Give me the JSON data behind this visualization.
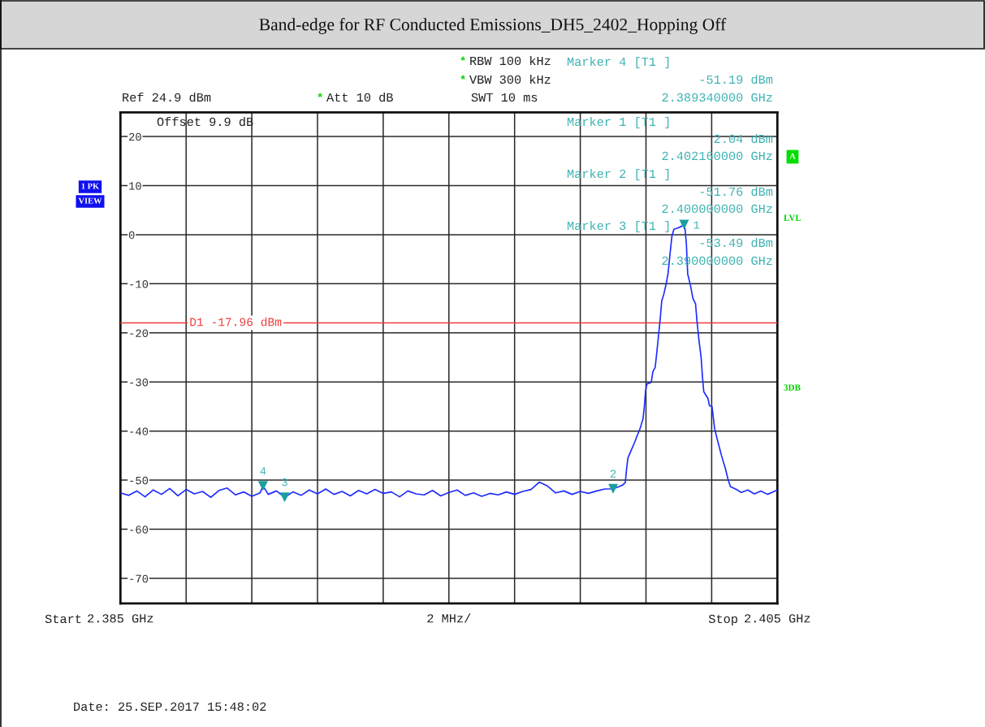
{
  "chart_data": {
    "type": "line",
    "title": "Band-edge for RF Conducted Emissions_DH5_2402_Hopping Off",
    "series": [
      {
        "color": "#1e2cff",
        "x": [
          2.385,
          2.38525,
          2.3855,
          2.38575,
          2.386,
          2.38625,
          2.3865,
          2.38675,
          2.387,
          2.38725,
          2.3875,
          2.38775,
          2.388,
          2.38825,
          2.3885,
          2.38875,
          2.389,
          2.38925,
          2.38934,
          2.3895,
          2.38975,
          2.39,
          2.39025,
          2.3905,
          2.39075,
          2.391,
          2.39125,
          2.3915,
          2.39175,
          2.392,
          2.39225,
          2.3925,
          2.39275,
          2.393,
          2.39325,
          2.3935,
          2.39375,
          2.394,
          2.39425,
          2.3945,
          2.39475,
          2.395,
          2.39525,
          2.3955,
          2.39575,
          2.396,
          2.39625,
          2.3965,
          2.39675,
          2.397,
          2.39725,
          2.3975,
          2.39775,
          2.398,
          2.39825,
          2.3985,
          2.39875,
          2.399,
          2.39925,
          2.3995,
          2.39975,
          2.4,
          2.40015,
          2.40029,
          2.40037,
          2.40041,
          2.40045,
          2.40054,
          2.40066,
          2.40074,
          2.40082,
          2.40091,
          2.40095,
          2.40099,
          2.40103,
          2.40116,
          2.40121,
          2.40128,
          2.40132,
          2.40138,
          2.40143,
          2.40148,
          2.40154,
          2.40161,
          2.40167,
          2.40173,
          2.40179,
          2.40185,
          2.40198,
          2.40208,
          2.40216,
          2.40219,
          2.40223,
          2.40227,
          2.40235,
          2.40243,
          2.40251,
          2.40255,
          2.40261,
          2.40268,
          2.40272,
          2.40276,
          2.40289,
          2.40293,
          2.40301,
          2.40309,
          2.40319,
          2.4033,
          2.40342,
          2.4035,
          2.40357,
          2.40375,
          2.4039,
          2.4041,
          2.4043,
          2.4045,
          2.4047,
          2.4049,
          2.405
        ],
        "values": [
          -52.6,
          -53.1,
          -52.2,
          -53.4,
          -52.0,
          -52.9,
          -51.7,
          -53.2,
          -51.9,
          -52.8,
          -52.3,
          -53.5,
          -52.1,
          -51.6,
          -53.0,
          -52.4,
          -53.3,
          -52.6,
          -51.19,
          -52.9,
          -52.2,
          -53.49,
          -52.4,
          -53.1,
          -52.0,
          -52.8,
          -51.8,
          -52.9,
          -52.3,
          -53.2,
          -52.1,
          -52.8,
          -51.9,
          -52.7,
          -52.4,
          -53.4,
          -52.2,
          -52.8,
          -53.0,
          -52.1,
          -53.2,
          -52.5,
          -52.0,
          -53.1,
          -52.6,
          -53.3,
          -52.7,
          -53.0,
          -52.4,
          -52.9,
          -52.3,
          -51.9,
          -50.4,
          -51.2,
          -52.6,
          -52.2,
          -52.9,
          -52.3,
          -52.7,
          -52.2,
          -51.8,
          -51.76,
          -51.4,
          -51.0,
          -50.5,
          -47.7,
          -45.5,
          -44.1,
          -42.2,
          -40.8,
          -39.5,
          -37.5,
          -35.0,
          -31.7,
          -30.4,
          -30.1,
          -27.9,
          -27.0,
          -24.6,
          -20.7,
          -17.4,
          -13.5,
          -12.2,
          -10.2,
          -8.0,
          -4.1,
          -0.3,
          1.1,
          1.4,
          1.7,
          2.04,
          1.1,
          -1.9,
          -8.0,
          -10.2,
          -13.0,
          -14.1,
          -17.4,
          -21.3,
          -25.1,
          -29.0,
          -32.0,
          -33.4,
          -34.8,
          -35.0,
          -39.5,
          -42.2,
          -45.0,
          -47.7,
          -49.9,
          -51.3,
          -51.9,
          -52.5,
          -52.0,
          -52.8,
          -52.2,
          -52.9,
          -52.3,
          -52.0
        ]
      },
      {
        "type": "scatter",
        "color": "#1a9e9e",
        "marker": "triangle",
        "x": [
          2.40216,
          2.4,
          2.39,
          2.38934
        ],
        "values": [
          2.04,
          -51.76,
          -53.49,
          -51.19
        ]
      }
    ],
    "xlim": [
      2.385,
      2.405
    ],
    "xticks": [
      {
        "value": 2.385,
        "label": "2.385 GHz"
      },
      {
        "value": 2.387,
        "label": null
      },
      {
        "value": 2.389,
        "label": null
      },
      {
        "value": 2.391,
        "label": null
      },
      {
        "value": 2.393,
        "label": null
      },
      {
        "value": 2.395,
        "label": "2 MHz/"
      },
      {
        "value": 2.397,
        "label": null
      },
      {
        "value": 2.399,
        "label": null
      },
      {
        "value": 2.401,
        "label": null
      },
      {
        "value": 2.403,
        "label": null
      },
      {
        "value": 2.405,
        "label": "2.405 GHz"
      }
    ],
    "ylim": [
      -75.1,
      24.9
    ],
    "yticks": [
      -70,
      -60,
      -50,
      -40,
      -30,
      -20,
      -10,
      0,
      10,
      20
    ],
    "grid": true,
    "ref_lines": [
      {
        "axis": "y",
        "value": -17.96,
        "label": "D1 -17.96 dBm",
        "color": "#f03c3c"
      }
    ],
    "annotations": [
      "*",
      "RBW 100 kHz",
      "*",
      "VBW 300 kHz",
      "Ref 24.9 dBm",
      "*",
      "Att 10 dB",
      "SWT 10 ms",
      "Marker 4 [T1 ]",
      "-51.19 dBm",
      "2.389340000 GHz",
      "Offset 9.9 dB",
      "Marker 1 [T1 ]",
      "2.04 dBm",
      "2.402160000 GHz",
      "Marker 2 [T1 ]",
      "-51.76 dBm",
      "2.400000000 GHz",
      "Marker 3 [T1 ]",
      "-53.49 dBm",
      "2.390000000 GHz",
      "1 PK",
      "VIEW",
      "A",
      "LVL",
      "3DB",
      "Start",
      "Stop",
      "Date: 25.SEP.2017 15:48:02",
      {
        "text": "1",
        "x": 2.40216,
        "y": 2.04
      },
      {
        "text": "2",
        "x": 2.4,
        "y": -51.76
      },
      {
        "text": "3",
        "x": 2.39,
        "y": -53.49
      },
      {
        "text": "4",
        "x": 2.38934,
        "y": -51.19
      }
    ]
  }
}
